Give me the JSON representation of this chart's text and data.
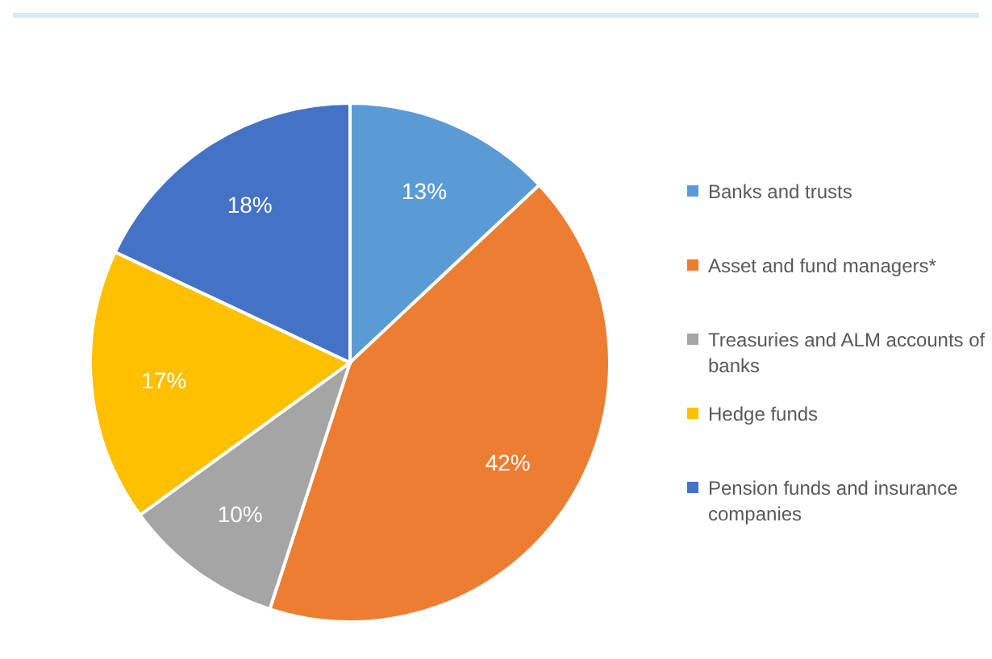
{
  "chart_data": {
    "type": "pie",
    "categories": [
      "Banks and trusts",
      "Asset and fund managers*",
      "Treasuries and ALM accounts of banks",
      "Hedge funds",
      "Pension funds and insurance companies"
    ],
    "values": [
      13,
      42,
      10,
      17,
      18
    ],
    "colors": [
      "#5b9bd5",
      "#ed7d31",
      "#a5a5a5",
      "#ffc000",
      "#4472c4"
    ],
    "value_labels": [
      "13%",
      "42%",
      "10%",
      "17%",
      "18%"
    ],
    "legend": "right"
  }
}
